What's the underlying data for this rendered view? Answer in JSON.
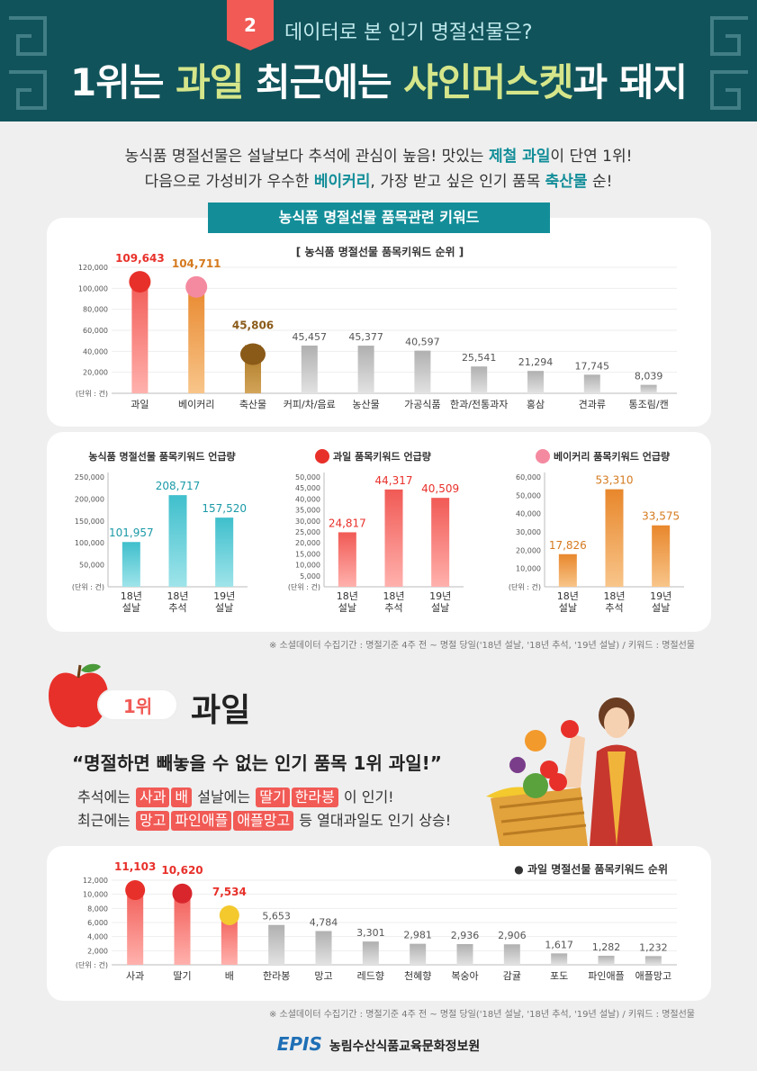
{
  "header": {
    "badge": "2",
    "subtitle": "데이터로 본 인기 명절선물은?",
    "title_pre": "1위는 ",
    "title_hl1": "과일",
    "title_mid": " 최근에는 ",
    "title_hl2": "샤인머스켓",
    "title_post": "과 돼지"
  },
  "intro": {
    "l1a": "농식품 명절선물은 설날보다 추석에 관심이 높음! 맛있는 ",
    "l1b": "제철 과일",
    "l1c": "이 단연 1위!",
    "l2a": "다음으로 가성비가 우수한 ",
    "l2b": "베이커리",
    "l2c": ", 가장 받고 싶은 인기 품목 ",
    "l2d": "축산물",
    "l2e": " 순!"
  },
  "banner": "농식품 명절선물 품목관련 키워드",
  "charts": {
    "main": {
      "title": "[ 농식품 명절선물 품목키워드 순위 ]",
      "unit": "(단위 : 건)",
      "categories": [
        "과일",
        "베이커리",
        "축산물",
        "커피/차/음료",
        "농산물",
        "가공식품",
        "한과/전통과자",
        "홍삼",
        "견과류",
        "통조림/캔"
      ],
      "values": [
        109643,
        104711,
        45806,
        45457,
        45377,
        40597,
        25541,
        21294,
        17745,
        8039
      ],
      "labels": [
        "109,643",
        "104,711",
        "45,806",
        "45,457",
        "45,377",
        "40,597",
        "25,541",
        "21,294",
        "17,745",
        "8,039"
      ],
      "ymax": 120000,
      "ticks": [
        "20,000",
        "40,000",
        "60,000",
        "80,000",
        "100,000",
        "120,000"
      ]
    },
    "s1": {
      "title": "농식품 명절선물 품목키워드 언급량",
      "unit": "(단위 : 건)",
      "cats": [
        "18년 설날",
        "18년 추석",
        "19년 설날"
      ],
      "values": [
        101957,
        208717,
        157520
      ],
      "labels": [
        "101,957",
        "208,717",
        "157,520"
      ],
      "ymax": 250000,
      "ticks": [
        "50,000",
        "100,000",
        "150,000",
        "200,000",
        "250,000"
      ]
    },
    "s2": {
      "title": "과일 품목키워드 언급량",
      "unit": "(단위 : 건)",
      "cats": [
        "18년 설날",
        "18년 추석",
        "19년 설날"
      ],
      "values": [
        24817,
        44317,
        40509
      ],
      "labels": [
        "24,817",
        "44,317",
        "40,509"
      ],
      "ymax": 50000,
      "ticks": [
        "5,000",
        "10,000",
        "15,000",
        "20,000",
        "25,000",
        "30,000",
        "35,000",
        "40,000",
        "45,000",
        "50,000"
      ]
    },
    "s3": {
      "title": "베이커리 품목키워드 언급량",
      "unit": "(단위 : 건)",
      "cats": [
        "18년 설날",
        "18년 추석",
        "19년 설날"
      ],
      "values": [
        17826,
        53310,
        33575
      ],
      "labels": [
        "17,826",
        "53,310",
        "33,575"
      ],
      "ymax": 60000,
      "ticks": [
        "10,000",
        "20,000",
        "30,000",
        "40,000",
        "50,000",
        "60,000"
      ]
    },
    "fruit": {
      "title": "● 과일 명절선물 품목키워드 순위",
      "unit": "(단위 : 건)",
      "categories": [
        "사과",
        "딸기",
        "배",
        "한라봉",
        "망고",
        "레드향",
        "천혜향",
        "복숭아",
        "감귤",
        "포도",
        "파인애플",
        "애플망고"
      ],
      "values": [
        11103,
        10620,
        7534,
        5653,
        4784,
        3301,
        2981,
        2936,
        2906,
        1617,
        1282,
        1232
      ],
      "labels": [
        "11,103",
        "10,620",
        "7,534",
        "5,653",
        "4,784",
        "3,301",
        "2,981",
        "2,936",
        "2,906",
        "1,617",
        "1,282",
        "1,232"
      ],
      "ymax": 12000,
      "ticks": [
        "2,000",
        "4,000",
        "6,000",
        "8,000",
        "10,000",
        "12,000"
      ]
    }
  },
  "note": "※ 소셜데이터 수집기간 : 명절기준 4주 전 ~ 명절 당일('18년 설날, '18년 추석, '19년 설날) / 키워드 : 명절선물",
  "rank": {
    "pill": "1위",
    "name": "과일"
  },
  "quote": "“명절하면 빼놓을 수 없는 인기 품목 1위 과일!”",
  "line1": {
    "a": "추석에는 ",
    "t1": "사과",
    "t2": "배",
    "b": " 설날에는 ",
    "t3": "딸기",
    "t4": "한라봉",
    "c": " 이 인기!"
  },
  "line2": {
    "a": "최근에는 ",
    "t1": "망고",
    "t2": "파인애플",
    "t3": "애플망고",
    "b": " 등 열대과일도 인기 상승!"
  },
  "footer": {
    "logo": "EPIS",
    "org": "농림수산식품교육문화정보원"
  }
}
